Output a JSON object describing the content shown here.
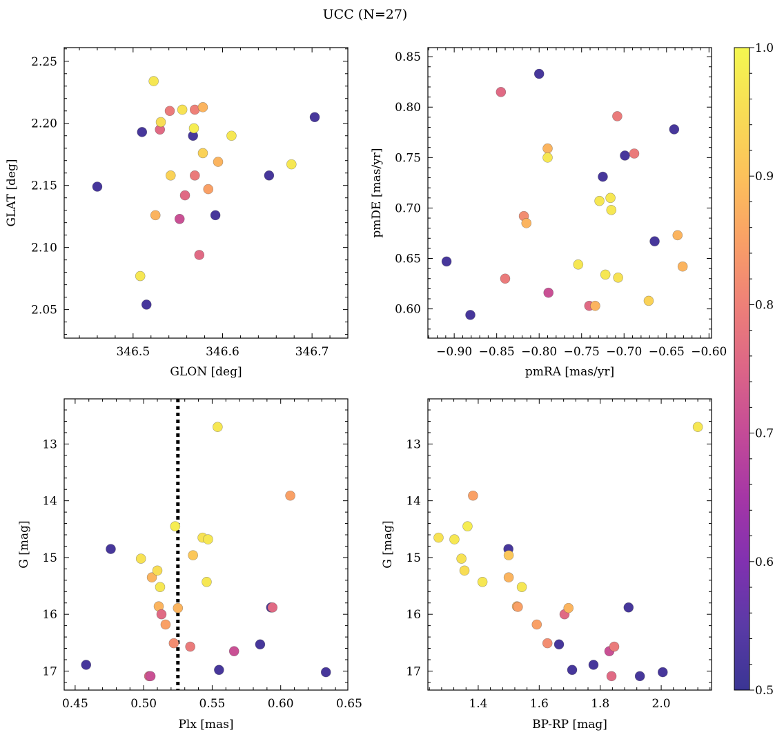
{
  "title": "UCC (N=27)",
  "colorbar": {
    "colormap": "plasma",
    "range": [
      0.5,
      1.0
    ],
    "ticks": [
      0.5,
      0.6,
      0.7,
      0.8,
      0.9,
      1.0
    ],
    "tick_labels": [
      "0.5",
      "0.6",
      "0.7",
      "0.8",
      "0.9",
      "1.0"
    ]
  },
  "chart_data": [
    {
      "type": "scatter",
      "panel": "top-left",
      "xlabel": "GLON [deg]",
      "ylabel": "GLAT [deg]",
      "xlim": [
        346.423,
        346.74
      ],
      "ylim": [
        2.027,
        2.261
      ],
      "xticks": [
        346.5,
        346.6,
        346.7
      ],
      "xtick_labels": [
        "346.5",
        "346.6",
        "346.7"
      ],
      "yticks": [
        2.05,
        2.1,
        2.15,
        2.2,
        2.25
      ],
      "ytick_labels": [
        "2.05",
        "2.10",
        "2.15",
        "2.20",
        "2.25"
      ],
      "points": [
        {
          "x": 346.46,
          "y": 2.149,
          "c": 0.52
        },
        {
          "x": 346.51,
          "y": 2.193,
          "c": 0.52
        },
        {
          "x": 346.515,
          "y": 2.054,
          "c": 0.52
        },
        {
          "x": 346.508,
          "y": 2.077,
          "c": 0.97
        },
        {
          "x": 346.523,
          "y": 2.234,
          "c": 0.97
        },
        {
          "x": 346.525,
          "y": 2.126,
          "c": 0.88
        },
        {
          "x": 346.53,
          "y": 2.195,
          "c": 0.76
        },
        {
          "x": 346.531,
          "y": 2.201,
          "c": 0.95
        },
        {
          "x": 346.541,
          "y": 2.21,
          "c": 0.79
        },
        {
          "x": 346.542,
          "y": 2.158,
          "c": 0.93
        },
        {
          "x": 346.552,
          "y": 2.123,
          "c": 0.71
        },
        {
          "x": 346.555,
          "y": 2.211,
          "c": 0.96
        },
        {
          "x": 346.558,
          "y": 2.142,
          "c": 0.76
        },
        {
          "x": 346.567,
          "y": 2.19,
          "c": 0.52
        },
        {
          "x": 346.568,
          "y": 2.196,
          "c": 0.98
        },
        {
          "x": 346.569,
          "y": 2.211,
          "c": 0.8
        },
        {
          "x": 346.569,
          "y": 2.158,
          "c": 0.79
        },
        {
          "x": 346.574,
          "y": 2.094,
          "c": 0.76
        },
        {
          "x": 346.578,
          "y": 2.213,
          "c": 0.88
        },
        {
          "x": 346.578,
          "y": 2.176,
          "c": 0.93
        },
        {
          "x": 346.584,
          "y": 2.147,
          "c": 0.85
        },
        {
          "x": 346.592,
          "y": 2.126,
          "c": 0.52
        },
        {
          "x": 346.595,
          "y": 2.169,
          "c": 0.88
        },
        {
          "x": 346.61,
          "y": 2.19,
          "c": 0.97
        },
        {
          "x": 346.652,
          "y": 2.158,
          "c": 0.52
        },
        {
          "x": 346.677,
          "y": 2.167,
          "c": 0.97
        },
        {
          "x": 346.703,
          "y": 2.205,
          "c": 0.52
        }
      ]
    },
    {
      "type": "scatter",
      "panel": "top-right",
      "xlabel": "pmRA [mas/yr]",
      "ylabel": "pmDE [mas/yr]",
      "xlim": [
        -0.931,
        -0.597
      ],
      "ylim": [
        0.571,
        0.859
      ],
      "xticks": [
        -0.9,
        -0.85,
        -0.8,
        -0.75,
        -0.7,
        -0.65,
        -0.6
      ],
      "xtick_labels": [
        "−0.90",
        "−0.85",
        "−0.80",
        "−0.75",
        "−0.70",
        "−0.65",
        "−0.60"
      ],
      "yticks": [
        0.6,
        0.65,
        0.7,
        0.75,
        0.8,
        0.85
      ],
      "ytick_labels": [
        "0.60",
        "0.65",
        "0.70",
        "0.75",
        "0.80",
        "0.85"
      ],
      "points": [
        {
          "x": -0.909,
          "y": 0.647,
          "c": 0.52
        },
        {
          "x": -0.881,
          "y": 0.594,
          "c": 0.52
        },
        {
          "x": -0.845,
          "y": 0.815,
          "c": 0.76
        },
        {
          "x": -0.84,
          "y": 0.63,
          "c": 0.79
        },
        {
          "x": -0.818,
          "y": 0.692,
          "c": 0.82
        },
        {
          "x": -0.815,
          "y": 0.685,
          "c": 0.88
        },
        {
          "x": -0.8,
          "y": 0.833,
          "c": 0.52
        },
        {
          "x": -0.79,
          "y": 0.759,
          "c": 0.88
        },
        {
          "x": -0.79,
          "y": 0.75,
          "c": 0.97
        },
        {
          "x": -0.789,
          "y": 0.616,
          "c": 0.71
        },
        {
          "x": -0.754,
          "y": 0.644,
          "c": 0.97
        },
        {
          "x": -0.741,
          "y": 0.603,
          "c": 0.76
        },
        {
          "x": -0.734,
          "y": 0.603,
          "c": 0.88
        },
        {
          "x": -0.729,
          "y": 0.707,
          "c": 0.97
        },
        {
          "x": -0.725,
          "y": 0.731,
          "c": 0.52
        },
        {
          "x": -0.722,
          "y": 0.634,
          "c": 0.97
        },
        {
          "x": -0.716,
          "y": 0.71,
          "c": 0.97
        },
        {
          "x": -0.715,
          "y": 0.698,
          "c": 0.97
        },
        {
          "x": -0.708,
          "y": 0.791,
          "c": 0.79
        },
        {
          "x": -0.707,
          "y": 0.631,
          "c": 0.96
        },
        {
          "x": -0.699,
          "y": 0.752,
          "c": 0.52
        },
        {
          "x": -0.688,
          "y": 0.754,
          "c": 0.79
        },
        {
          "x": -0.671,
          "y": 0.608,
          "c": 0.93
        },
        {
          "x": -0.664,
          "y": 0.667,
          "c": 0.52
        },
        {
          "x": -0.641,
          "y": 0.778,
          "c": 0.52
        },
        {
          "x": -0.637,
          "y": 0.673,
          "c": 0.88
        },
        {
          "x": -0.631,
          "y": 0.642,
          "c": 0.88
        }
      ]
    },
    {
      "type": "scatter",
      "panel": "bottom-left",
      "xlabel": "Plx [mas]",
      "ylabel": "G [mag]",
      "xlim": [
        0.442,
        0.649
      ],
      "ylim": [
        17.335,
        12.205
      ],
      "y_inverted": true,
      "vline": {
        "x": 0.525,
        "style": "dotted",
        "color": "#000000"
      },
      "xticks": [
        0.45,
        0.5,
        0.55,
        0.6,
        0.65
      ],
      "xtick_labels": [
        "0.45",
        "0.50",
        "0.55",
        "0.60",
        "0.65"
      ],
      "yticks": [
        13,
        14,
        15,
        16,
        17
      ],
      "ytick_labels": [
        "13",
        "14",
        "15",
        "16",
        "17"
      ],
      "points": [
        {
          "x": 0.458,
          "y": 16.89,
          "c": 0.52
        },
        {
          "x": 0.476,
          "y": 14.85,
          "c": 0.52
        },
        {
          "x": 0.498,
          "y": 15.02,
          "c": 0.96
        },
        {
          "x": 0.504,
          "y": 17.09,
          "c": 0.76
        },
        {
          "x": 0.505,
          "y": 17.09,
          "c": 0.71
        },
        {
          "x": 0.506,
          "y": 15.35,
          "c": 0.88
        },
        {
          "x": 0.51,
          "y": 15.23,
          "c": 0.95
        },
        {
          "x": 0.511,
          "y": 15.86,
          "c": 0.88
        },
        {
          "x": 0.512,
          "y": 15.52,
          "c": 0.97
        },
        {
          "x": 0.513,
          "y": 16.0,
          "c": 0.76
        },
        {
          "x": 0.516,
          "y": 16.18,
          "c": 0.85
        },
        {
          "x": 0.522,
          "y": 16.51,
          "c": 0.82
        },
        {
          "x": 0.523,
          "y": 14.45,
          "c": 0.98
        },
        {
          "x": 0.525,
          "y": 15.89,
          "c": 0.88
        },
        {
          "x": 0.534,
          "y": 16.57,
          "c": 0.79
        },
        {
          "x": 0.536,
          "y": 14.96,
          "c": 0.91
        },
        {
          "x": 0.543,
          "y": 14.65,
          "c": 0.96
        },
        {
          "x": 0.546,
          "y": 15.43,
          "c": 0.97
        },
        {
          "x": 0.547,
          "y": 14.68,
          "c": 0.97
        },
        {
          "x": 0.554,
          "y": 12.7,
          "c": 0.97
        },
        {
          "x": 0.555,
          "y": 16.98,
          "c": 0.52
        },
        {
          "x": 0.566,
          "y": 16.65,
          "c": 0.71
        },
        {
          "x": 0.585,
          "y": 16.53,
          "c": 0.52
        },
        {
          "x": 0.593,
          "y": 15.88,
          "c": 0.52
        },
        {
          "x": 0.594,
          "y": 15.88,
          "c": 0.76
        },
        {
          "x": 0.607,
          "y": 13.91,
          "c": 0.85
        },
        {
          "x": 0.633,
          "y": 17.02,
          "c": 0.52
        }
      ]
    },
    {
      "type": "scatter",
      "panel": "bottom-right",
      "xlabel": "BP-RP [mag]",
      "ylabel": "G [mag]",
      "xlim": [
        1.235,
        2.165
      ],
      "ylim": [
        17.335,
        12.205
      ],
      "y_inverted": true,
      "xticks": [
        1.4,
        1.6,
        1.8,
        2.0
      ],
      "xtick_labels": [
        "1.4",
        "1.6",
        "1.8",
        "2.0"
      ],
      "yticks": [
        13,
        14,
        15,
        16,
        17
      ],
      "ytick_labels": [
        "13",
        "14",
        "15",
        "16",
        "17"
      ],
      "points": [
        {
          "x": 1.27,
          "y": 14.65,
          "c": 0.96
        },
        {
          "x": 1.322,
          "y": 14.68,
          "c": 0.97
        },
        {
          "x": 1.345,
          "y": 15.02,
          "c": 0.96
        },
        {
          "x": 1.355,
          "y": 15.23,
          "c": 0.95
        },
        {
          "x": 1.365,
          "y": 14.45,
          "c": 0.98
        },
        {
          "x": 1.383,
          "y": 13.91,
          "c": 0.85
        },
        {
          "x": 1.414,
          "y": 15.43,
          "c": 0.97
        },
        {
          "x": 1.499,
          "y": 14.85,
          "c": 0.52
        },
        {
          "x": 1.5,
          "y": 14.96,
          "c": 0.91
        },
        {
          "x": 1.5,
          "y": 15.35,
          "c": 0.88
        },
        {
          "x": 1.527,
          "y": 15.86,
          "c": 0.88
        },
        {
          "x": 1.53,
          "y": 15.87,
          "c": 0.85
        },
        {
          "x": 1.543,
          "y": 15.52,
          "c": 0.97
        },
        {
          "x": 1.592,
          "y": 16.18,
          "c": 0.85
        },
        {
          "x": 1.627,
          "y": 16.51,
          "c": 0.82
        },
        {
          "x": 1.665,
          "y": 16.53,
          "c": 0.52
        },
        {
          "x": 1.683,
          "y": 16.0,
          "c": 0.76
        },
        {
          "x": 1.696,
          "y": 15.89,
          "c": 0.88
        },
        {
          "x": 1.708,
          "y": 16.98,
          "c": 0.52
        },
        {
          "x": 1.778,
          "y": 16.89,
          "c": 0.52
        },
        {
          "x": 1.83,
          "y": 16.65,
          "c": 0.71
        },
        {
          "x": 1.837,
          "y": 17.09,
          "c": 0.76
        },
        {
          "x": 1.846,
          "y": 16.57,
          "c": 0.79
        },
        {
          "x": 1.893,
          "y": 15.88,
          "c": 0.52
        },
        {
          "x": 1.93,
          "y": 17.09,
          "c": 0.52
        },
        {
          "x": 2.005,
          "y": 17.02,
          "c": 0.52
        },
        {
          "x": 2.12,
          "y": 12.7,
          "c": 0.97
        }
      ]
    }
  ]
}
